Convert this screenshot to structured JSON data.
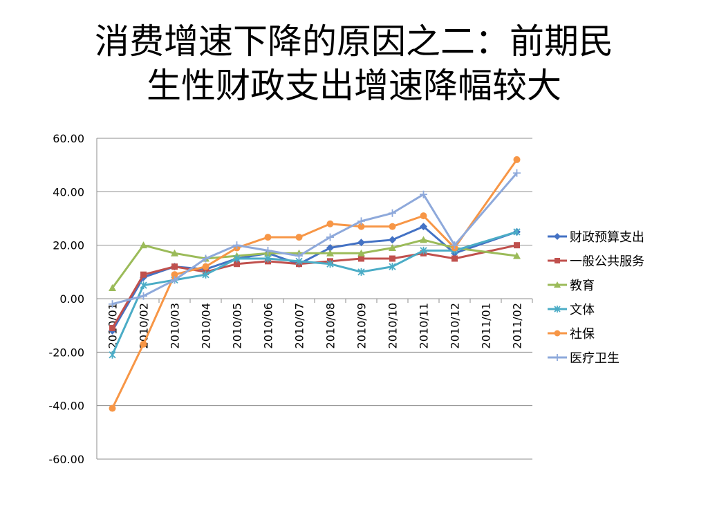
{
  "title": {
    "line1": "消费增速下降的原因之二：前期民",
    "line2": "生性财政支出增速降幅较大"
  },
  "chart_data": {
    "type": "line",
    "categories": [
      "2010/01",
      "2010/02",
      "2010/03",
      "2010/04",
      "2010/05",
      "2010/06",
      "2010/07",
      "2010/08",
      "2010/09",
      "2010/10",
      "2010/11",
      "2010/12",
      "2011/01",
      "2011/02"
    ],
    "ylim": [
      -60,
      60
    ],
    "yticks": [
      "60.00",
      "40.00",
      "20.00",
      "0.00",
      "-20.00",
      "-40.00",
      "-60.00"
    ],
    "grid": true,
    "legend_position": "right",
    "series": [
      {
        "name": "财政预算支出",
        "color": "#4472C4",
        "marker": "diamond",
        "values": [
          -12,
          8,
          12,
          11,
          15,
          17,
          13,
          19,
          21,
          22,
          27,
          17,
          null,
          25
        ]
      },
      {
        "name": "一般公共服务",
        "color": "#C0504D",
        "marker": "square",
        "values": [
          -11,
          9,
          12,
          10,
          13,
          14,
          13,
          14,
          15,
          15,
          17,
          15,
          null,
          20
        ]
      },
      {
        "name": "教育",
        "color": "#9BBB59",
        "marker": "triangle",
        "values": [
          4,
          20,
          17,
          15,
          16,
          17,
          17,
          17,
          17,
          19,
          22,
          19,
          null,
          16
        ]
      },
      {
        "name": "文体",
        "color": "#4BACC6",
        "marker": "asterisk",
        "values": [
          -21,
          5,
          7,
          9,
          15,
          15,
          14,
          13,
          10,
          12,
          18,
          18,
          null,
          25
        ]
      },
      {
        "name": "社保",
        "color": "#F79646",
        "marker": "circle",
        "values": [
          -41,
          -17,
          9,
          12,
          19,
          23,
          23,
          28,
          27,
          27,
          31,
          19,
          null,
          52
        ]
      },
      {
        "name": "医疗卫生",
        "color": "#8EA9DB",
        "marker": "plus",
        "values": [
          -2,
          1,
          7,
          15,
          20,
          18,
          16,
          23,
          29,
          32,
          39,
          20,
          null,
          47
        ]
      }
    ]
  }
}
